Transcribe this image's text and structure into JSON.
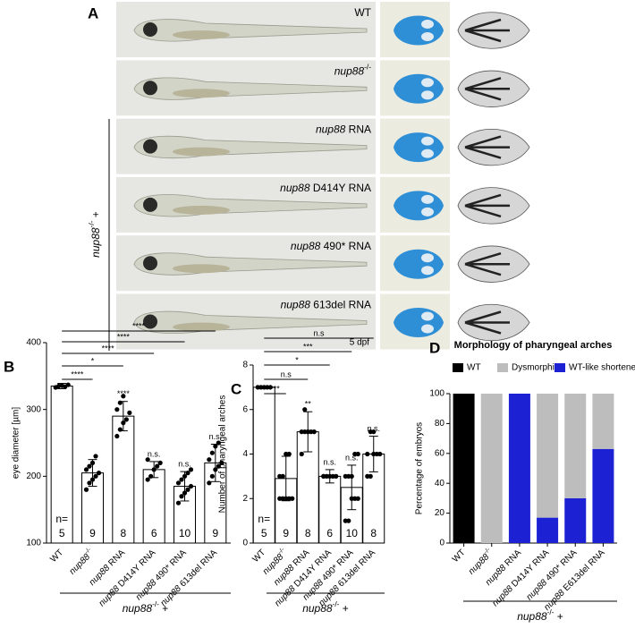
{
  "panel_a": {
    "panel": "A",
    "rows": [
      "WT",
      "nup88-/-",
      "nup88 RNA",
      "nup88 D414Y RNA",
      "nup88 490* RNA",
      "nup88 613del RNA"
    ],
    "stage": "5 dpf",
    "group_label": "nup88-/- +"
  },
  "chart_data": [
    {
      "type": "bar_scatter",
      "panel": "B",
      "y_label": "eye diameter [µm]",
      "categories": [
        "WT",
        "nup88-/-",
        "nup88 RNA",
        "nup88 D414Y RNA",
        "nup88 490* RNA",
        "nup88 613del RNA"
      ],
      "values": [
        335,
        205,
        290,
        210,
        185,
        220
      ],
      "errors": [
        4,
        20,
        22,
        12,
        22,
        28
      ],
      "points": [
        [
          333,
          335,
          336,
          334,
          337
        ],
        [
          180,
          190,
          195,
          200,
          205,
          210,
          215,
          220,
          230
        ],
        [
          260,
          270,
          280,
          285,
          295,
          300,
          310,
          320
        ],
        [
          195,
          200,
          210,
          215,
          220,
          225
        ],
        [
          160,
          170,
          175,
          180,
          185,
          190,
          195,
          200,
          205,
          210
        ],
        [
          190,
          200,
          210,
          215,
          220,
          225,
          235,
          245,
          250
        ]
      ],
      "n_label": "n=",
      "n": [
        5,
        9,
        8,
        6,
        10,
        9
      ],
      "significance_labels": [
        null,
        null,
        "****",
        "n.s.",
        "n.s.",
        "n.s."
      ],
      "comparison_labels": [
        null,
        "****",
        "*",
        "****",
        "****",
        "****"
      ],
      "group_label": "nup88-/- +",
      "color": "#ffffff",
      "ylim": [
        100,
        400
      ],
      "yticks": [
        100,
        200,
        300,
        400
      ]
    },
    {
      "type": "bar_scatter",
      "panel": "C",
      "y_label": "Number of pharyngeal arches",
      "categories": [
        "WT",
        "nup88-/-",
        "nup88 RNA",
        "nup88 D414Y RNA",
        "nup88 490* RNA",
        "nup88 613del RNA"
      ],
      "values": [
        7,
        2.9,
        5,
        3,
        2.5,
        4
      ],
      "errors": [
        0,
        1,
        0.9,
        0.3,
        1,
        0.8
      ],
      "points": [
        [
          7,
          7,
          7,
          7,
          7
        ],
        [
          2,
          2,
          2,
          2,
          2,
          3,
          3,
          4,
          4
        ],
        [
          4,
          5,
          5,
          5,
          5,
          5,
          6,
          5
        ],
        [
          3,
          3,
          3,
          3,
          3,
          3
        ],
        [
          1,
          1,
          2,
          2,
          2,
          3,
          3,
          3,
          4,
          4
        ],
        [
          3,
          3,
          4,
          4,
          4,
          4,
          5,
          5
        ]
      ],
      "n_label": "n=",
      "n": [
        5,
        9,
        8,
        6,
        10,
        8
      ],
      "significance_labels": [
        null,
        null,
        "**",
        "n.s.",
        "n.s.",
        "n.s."
      ],
      "comparison_labels": [
        null,
        "***",
        "n.s",
        "*",
        "***",
        "n.s"
      ],
      "group_label": "nup88-/- +",
      "color": "#ffffff",
      "ylim": [
        0,
        8
      ],
      "yticks": [
        0,
        2,
        4,
        6,
        8
      ]
    },
    {
      "type": "stacked_bar",
      "panel": "D",
      "title": "Morphology of pharyngeal arches",
      "y_label": "Percentage of embryos",
      "categories": [
        "WT",
        "nup88-/-",
        "nup88 RNA",
        "nup88 D414Y RNA",
        "nup88 490* RNA",
        "nup88 E613del RNA"
      ],
      "series": [
        {
          "name": "WT",
          "color": "#000000",
          "values": [
            100,
            0,
            0,
            0,
            0,
            0
          ]
        },
        {
          "name": "Dysmorphic",
          "color": "#bdbdbd",
          "values": [
            0,
            100,
            0,
            83,
            70,
            37
          ]
        },
        {
          "name": "WT-like shortened",
          "color": "#1c22d4",
          "values": [
            0,
            0,
            100,
            17,
            30,
            63
          ]
        }
      ],
      "group_label": "nup88-/- +",
      "ylim": [
        0,
        100
      ],
      "yticks": [
        0,
        20,
        40,
        60,
        80,
        100
      ]
    }
  ]
}
